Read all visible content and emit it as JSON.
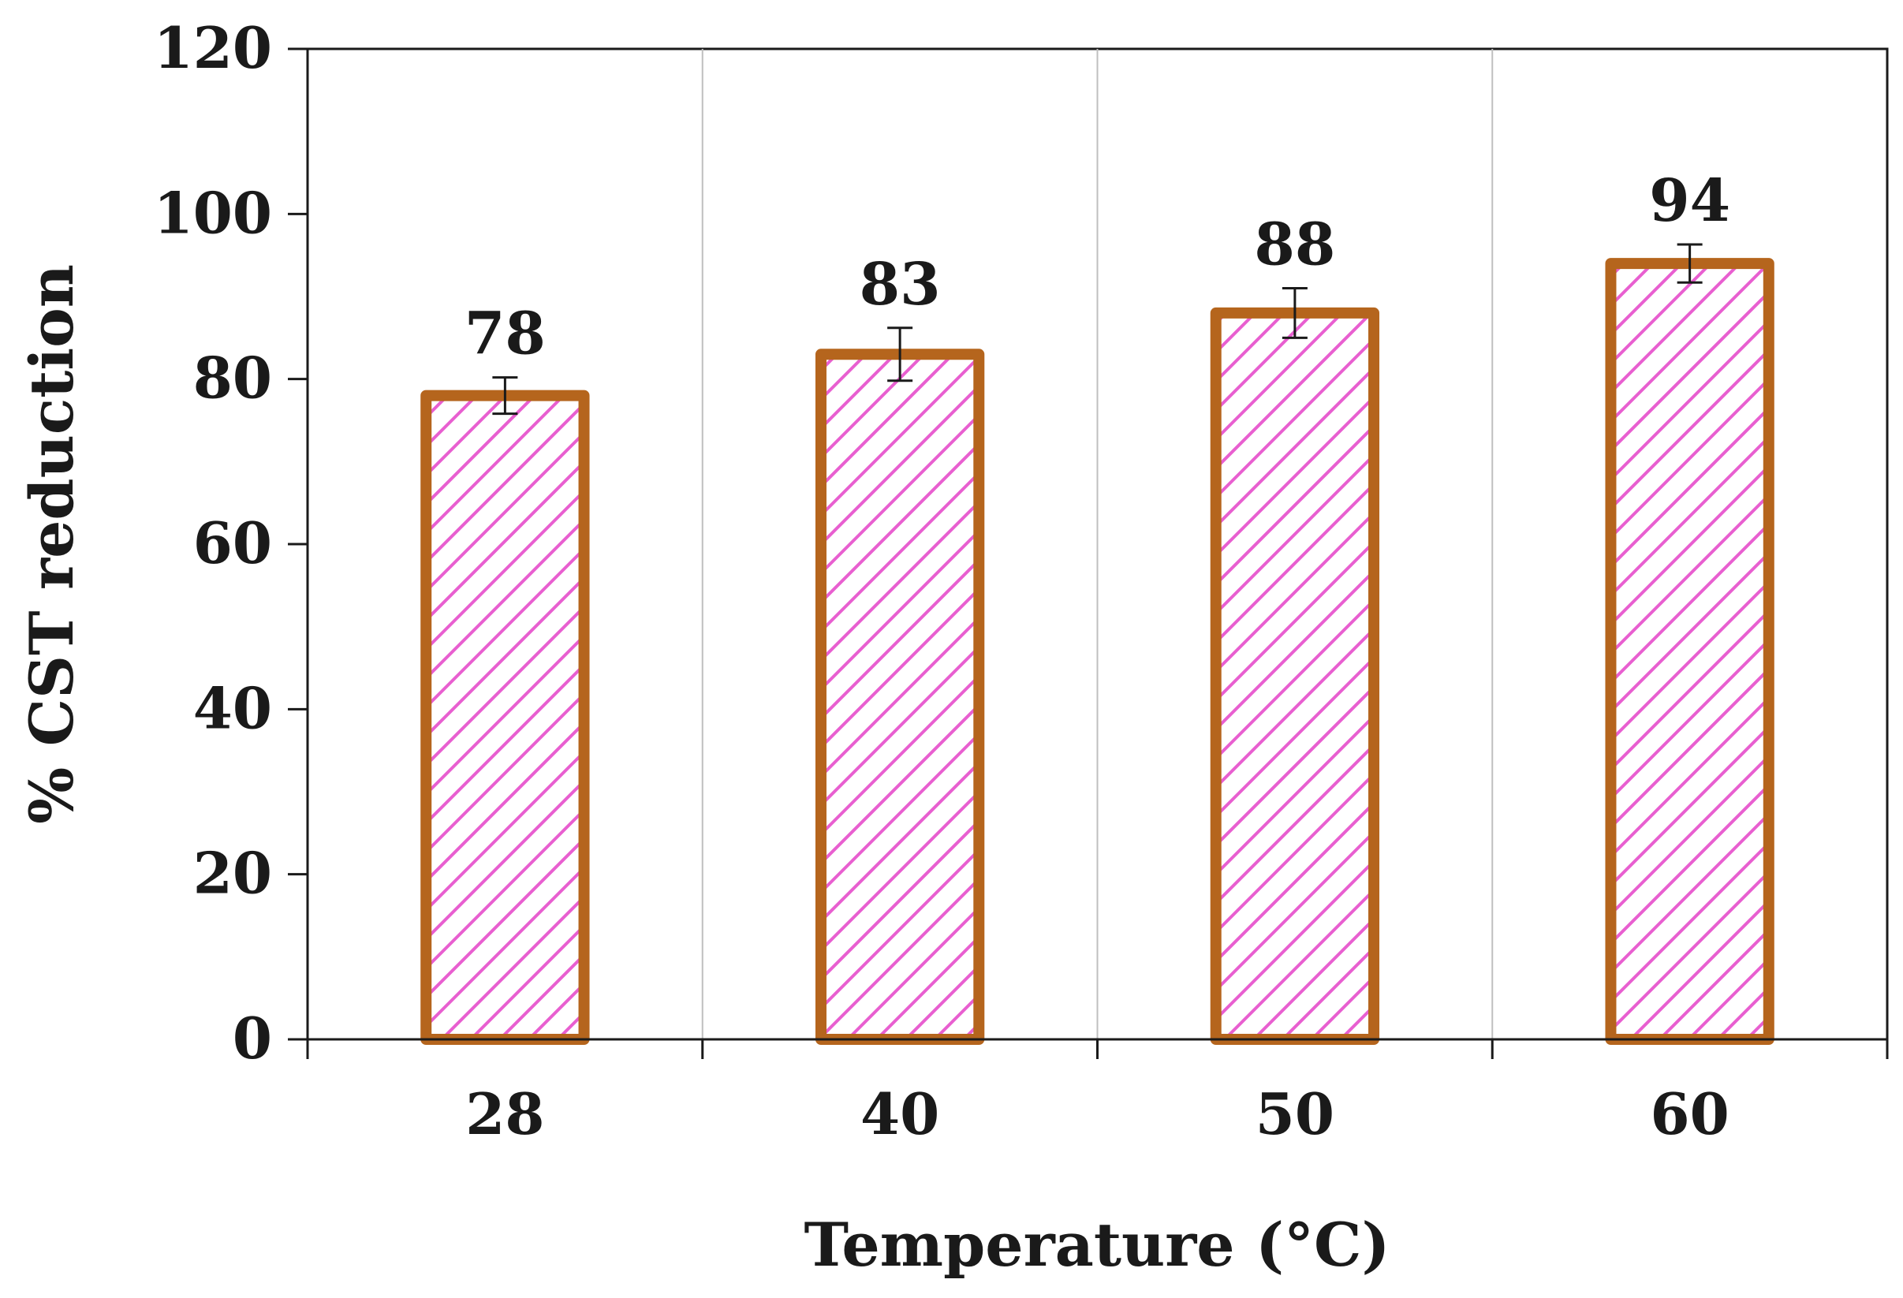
{
  "chart_data": {
    "type": "bar",
    "categories": [
      "28",
      "40",
      "50",
      "60"
    ],
    "values": [
      78,
      83,
      88,
      94
    ],
    "error": [
      2.2,
      3.2,
      3.0,
      2.3
    ],
    "data_labels": [
      "78",
      "83",
      "88",
      "94"
    ],
    "xlabel": "Temperature (°C)",
    "ylabel": "% CST reduction",
    "ylim": [
      0,
      120
    ],
    "yticks": [
      0,
      20,
      40,
      60,
      80,
      100,
      120
    ],
    "ytick_labels": [
      "0",
      "20",
      "40",
      "60",
      "80",
      "100",
      "120"
    ],
    "grid": "vertical",
    "legend": "none",
    "colors": {
      "bar_border": "#b5651d",
      "bar_hatch": "#e85fd0",
      "bar_fill": "#ffffff",
      "axis": "#1a1a1a",
      "grid": "#bfbfbf",
      "error_bar": "#1a1a1a"
    }
  }
}
